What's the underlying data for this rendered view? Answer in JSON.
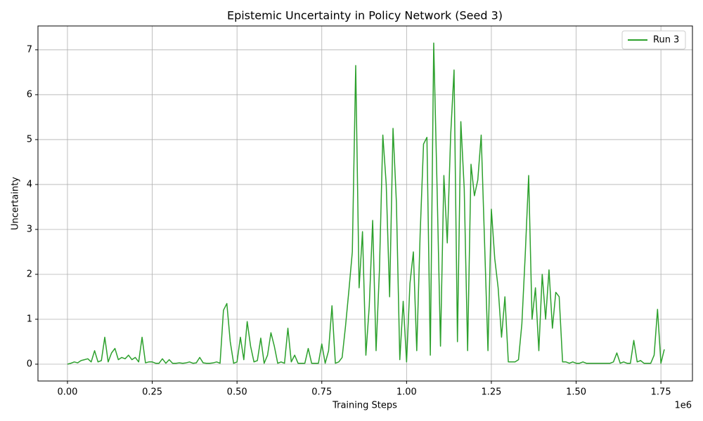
{
  "chart_data": {
    "type": "line",
    "title": "Epistemic Uncertainty in Policy Network (Seed 3)",
    "x_label": "Training Steps",
    "y_label": "Uncertainty",
    "x_offset_label": "1e6",
    "legend": "upper right",
    "grid": true,
    "xlim": [
      -87000,
      1843000
    ],
    "ylim": [
      -0.375,
      7.53
    ],
    "xticks": [
      {
        "value": 0,
        "label": "0.00"
      },
      {
        "value": 250000,
        "label": "0.25"
      },
      {
        "value": 500000,
        "label": "0.50"
      },
      {
        "value": 750000,
        "label": "0.75"
      },
      {
        "value": 1000000,
        "label": "1.00"
      },
      {
        "value": 1250000,
        "label": "1.25"
      },
      {
        "value": 1500000,
        "label": "1.50"
      },
      {
        "value": 1750000,
        "label": "1.75"
      }
    ],
    "yticks": [
      0,
      1,
      2,
      3,
      4,
      5,
      6,
      7
    ],
    "x": [
      0,
      10000,
      20000,
      30000,
      40000,
      50000,
      60000,
      70000,
      80000,
      90000,
      100000,
      110000,
      120000,
      130000,
      140000,
      150000,
      160000,
      170000,
      180000,
      190000,
      200000,
      210000,
      220000,
      230000,
      240000,
      250000,
      260000,
      270000,
      280000,
      290000,
      300000,
      310000,
      320000,
      330000,
      340000,
      350000,
      360000,
      370000,
      380000,
      390000,
      400000,
      410000,
      420000,
      430000,
      440000,
      450000,
      460000,
      470000,
      480000,
      490000,
      500000,
      510000,
      520000,
      530000,
      540000,
      550000,
      560000,
      570000,
      580000,
      590000,
      600000,
      610000,
      620000,
      630000,
      640000,
      650000,
      660000,
      670000,
      680000,
      690000,
      700000,
      710000,
      720000,
      730000,
      740000,
      750000,
      760000,
      770000,
      780000,
      790000,
      800000,
      810000,
      820000,
      830000,
      840000,
      850000,
      860000,
      870000,
      880000,
      890000,
      900000,
      910000,
      920000,
      930000,
      940000,
      950000,
      960000,
      970000,
      980000,
      990000,
      1000000,
      1010000,
      1020000,
      1030000,
      1040000,
      1050000,
      1060000,
      1070000,
      1080000,
      1090000,
      1100000,
      1110000,
      1120000,
      1130000,
      1140000,
      1150000,
      1160000,
      1170000,
      1180000,
      1190000,
      1200000,
      1210000,
      1220000,
      1230000,
      1240000,
      1250000,
      1260000,
      1270000,
      1280000,
      1290000,
      1300000,
      1310000,
      1320000,
      1330000,
      1340000,
      1350000,
      1360000,
      1370000,
      1380000,
      1390000,
      1400000,
      1410000,
      1420000,
      1430000,
      1440000,
      1450000,
      1460000,
      1470000,
      1480000,
      1490000,
      1500000,
      1510000,
      1520000,
      1530000,
      1540000,
      1550000,
      1560000,
      1570000,
      1580000,
      1590000,
      1600000,
      1610000,
      1620000,
      1630000,
      1640000,
      1650000,
      1660000,
      1670000,
      1680000,
      1690000,
      1700000,
      1710000,
      1720000,
      1730000,
      1740000,
      1750000,
      1760000
    ],
    "series": [
      {
        "name": "Run 3",
        "color": "#2ca02c",
        "values": [
          0,
          0.02,
          0.05,
          0.03,
          0.08,
          0.1,
          0.12,
          0.05,
          0.3,
          0.05,
          0.08,
          0.6,
          0.05,
          0.25,
          0.35,
          0.1,
          0.15,
          0.12,
          0.2,
          0.1,
          0.15,
          0.05,
          0.6,
          0.03,
          0.05,
          0.05,
          0.02,
          0.02,
          0.12,
          0.02,
          0.1,
          0.02,
          0.02,
          0.03,
          0.02,
          0.03,
          0.05,
          0.02,
          0.03,
          0.15,
          0.03,
          0.02,
          0.02,
          0.03,
          0.05,
          0.02,
          1.2,
          1.35,
          0.5,
          0.02,
          0.05,
          0.6,
          0.1,
          0.95,
          0.4,
          0.05,
          0.08,
          0.58,
          0.02,
          0.2,
          0.7,
          0.4,
          0.02,
          0.05,
          0.02,
          0.8,
          0.05,
          0.2,
          0.02,
          0.02,
          0.02,
          0.35,
          0.02,
          0.02,
          0.02,
          0.45,
          0.02,
          0.3,
          1.3,
          0.02,
          0.05,
          0.15,
          0.85,
          1.65,
          2.5,
          6.65,
          1.7,
          2.95,
          0.2,
          1.3,
          3.2,
          0.3,
          2.1,
          5.1,
          4.0,
          1.5,
          5.25,
          3.6,
          0.1,
          1.4,
          0.05,
          1.8,
          2.5,
          0.3,
          2.9,
          4.9,
          5.05,
          0.2,
          7.15,
          3.9,
          0.4,
          4.2,
          2.7,
          5.1,
          6.55,
          0.5,
          5.4,
          3.9,
          0.3,
          4.45,
          3.75,
          4.1,
          5.1,
          2.7,
          0.3,
          3.45,
          2.35,
          1.7,
          0.6,
          1.5,
          0.05,
          0.05,
          0.05,
          0.1,
          0.9,
          2.45,
          4.2,
          1.0,
          1.7,
          0.3,
          2.0,
          1.0,
          2.1,
          0.8,
          1.6,
          1.5,
          0.05,
          0.05,
          0.02,
          0.05,
          0.02,
          0.02,
          0.05,
          0.02,
          0.02,
          0.02,
          0.02,
          0.02,
          0.02,
          0.02,
          0.02,
          0.05,
          0.25,
          0.02,
          0.05,
          0.02,
          0.02,
          0.53,
          0.05,
          0.08,
          0.02,
          0.02,
          0.02,
          0.2,
          1.22,
          0.02,
          0.33
        ]
      }
    ]
  }
}
